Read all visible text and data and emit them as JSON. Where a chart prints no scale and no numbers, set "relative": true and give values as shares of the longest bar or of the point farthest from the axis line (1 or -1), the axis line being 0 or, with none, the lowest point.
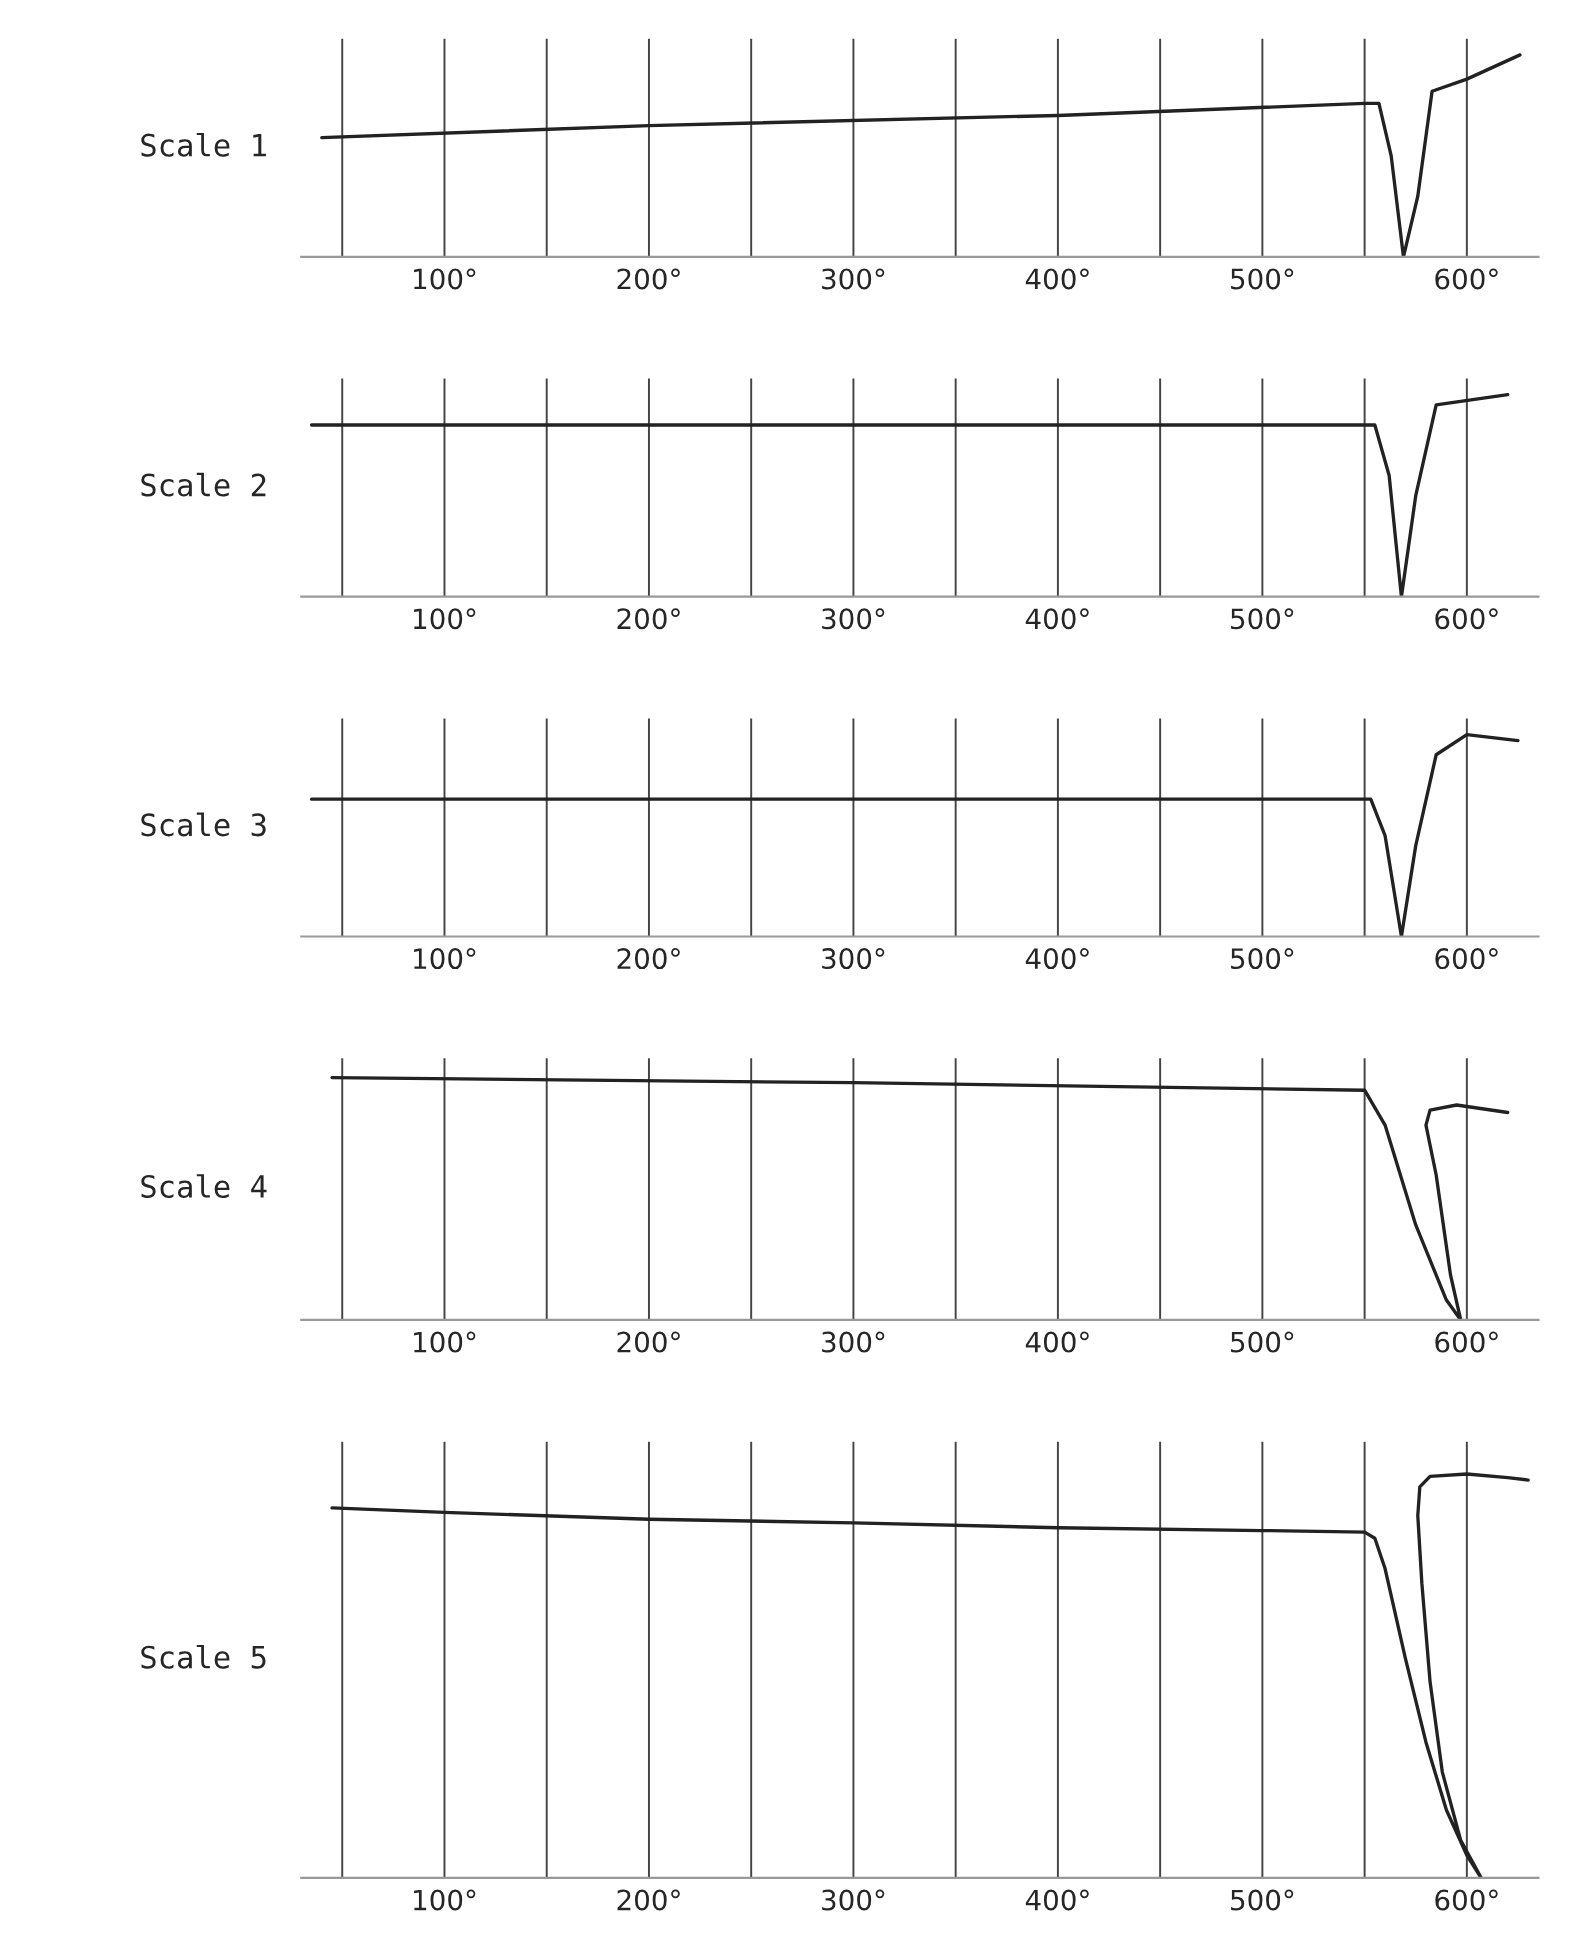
{
  "chart_data": [
    {
      "type": "line",
      "ylabel": "Scale 1",
      "relative": true,
      "grid": "x",
      "xlim": [
        30,
        635
      ],
      "xticks": [
        {
          "value": 50,
          "label": null
        },
        {
          "value": 100,
          "label": "100°"
        },
        {
          "value": 150,
          "label": null
        },
        {
          "value": 200,
          "label": "200°"
        },
        {
          "value": 250,
          "label": null
        },
        {
          "value": 300,
          "label": "300°"
        },
        {
          "value": 350,
          "label": null
        },
        {
          "value": 400,
          "label": "400°"
        },
        {
          "value": 450,
          "label": null
        },
        {
          "value": 500,
          "label": "500°"
        },
        {
          "value": 550,
          "label": null
        },
        {
          "value": 600,
          "label": "600°"
        }
      ],
      "series": [
        {
          "color": "#222222",
          "x": [
            40,
            200,
            400,
            550,
            557,
            563,
            569,
            576,
            583,
            600,
            626
          ],
          "values": [
            0.59,
            0.65,
            0.7,
            0.76,
            0.76,
            0.5,
            0,
            0.3,
            0.82,
            0.88,
            1
          ]
        }
      ]
    },
    {
      "type": "line",
      "ylabel": "Scale 2",
      "relative": true,
      "grid": "x",
      "xlim": [
        30,
        635
      ],
      "xticks": [
        {
          "value": 50,
          "label": null
        },
        {
          "value": 100,
          "label": "100°"
        },
        {
          "value": 150,
          "label": null
        },
        {
          "value": 200,
          "label": "200°"
        },
        {
          "value": 250,
          "label": null
        },
        {
          "value": 300,
          "label": "300°"
        },
        {
          "value": 350,
          "label": null
        },
        {
          "value": 400,
          "label": "400°"
        },
        {
          "value": 450,
          "label": null
        },
        {
          "value": 500,
          "label": "500°"
        },
        {
          "value": 550,
          "label": null
        },
        {
          "value": 600,
          "label": "600°"
        }
      ],
      "series": [
        {
          "color": "#222222",
          "x": [
            35,
            300,
            555,
            562,
            568,
            575,
            585,
            620
          ],
          "values": [
            0.85,
            0.85,
            0.85,
            0.6,
            0,
            0.5,
            0.95,
            1
          ]
        }
      ]
    },
    {
      "type": "line",
      "ylabel": "Scale 3",
      "relative": true,
      "grid": "x",
      "xlim": [
        30,
        635
      ],
      "xticks": [
        {
          "value": 50,
          "label": null
        },
        {
          "value": 100,
          "label": "100°"
        },
        {
          "value": 150,
          "label": null
        },
        {
          "value": 200,
          "label": "200°"
        },
        {
          "value": 250,
          "label": null
        },
        {
          "value": 300,
          "label": "300°"
        },
        {
          "value": 350,
          "label": null
        },
        {
          "value": 400,
          "label": "400°"
        },
        {
          "value": 450,
          "label": null
        },
        {
          "value": 500,
          "label": "500°"
        },
        {
          "value": 550,
          "label": null
        },
        {
          "value": 600,
          "label": "600°"
        }
      ],
      "series": [
        {
          "color": "#222222",
          "x": [
            35,
            300,
            553,
            560,
            568,
            575,
            585,
            600,
            625
          ],
          "values": [
            0.68,
            0.68,
            0.68,
            0.5,
            0,
            0.45,
            0.9,
            1,
            0.97
          ]
        }
      ]
    },
    {
      "type": "line",
      "ylabel": "Scale 4",
      "relative": true,
      "grid": "x",
      "xlim": [
        30,
        635
      ],
      "xticks": [
        {
          "value": 50,
          "label": null
        },
        {
          "value": 100,
          "label": "100°"
        },
        {
          "value": 150,
          "label": null
        },
        {
          "value": 200,
          "label": "200°"
        },
        {
          "value": 250,
          "label": null
        },
        {
          "value": 300,
          "label": "300°"
        },
        {
          "value": 350,
          "label": null
        },
        {
          "value": 400,
          "label": "400°"
        },
        {
          "value": 450,
          "label": null
        },
        {
          "value": 500,
          "label": "500°"
        },
        {
          "value": 550,
          "label": null
        },
        {
          "value": 600,
          "label": "600°"
        }
      ],
      "series": [
        {
          "color": "#222222",
          "x": [
            45,
            300,
            550,
            560,
            575,
            590,
            597,
            592,
            585,
            580,
            582,
            595,
            620
          ],
          "values": [
            1,
            0.979,
            0.948,
            0.804,
            0.392,
            0.082,
            0,
            0.186,
            0.598,
            0.804,
            0.866,
            0.887,
            0.856
          ]
        }
      ]
    },
    {
      "type": "line",
      "ylabel": "Scale 5",
      "relative": true,
      "grid": "x",
      "xlim": [
        30,
        635
      ],
      "xticks": [
        {
          "value": 50,
          "label": null
        },
        {
          "value": 100,
          "label": "100°"
        },
        {
          "value": 150,
          "label": null
        },
        {
          "value": 200,
          "label": "200°"
        },
        {
          "value": 250,
          "label": null
        },
        {
          "value": 300,
          "label": "300°"
        },
        {
          "value": 350,
          "label": null
        },
        {
          "value": 400,
          "label": "400°"
        },
        {
          "value": 450,
          "label": null
        },
        {
          "value": 500,
          "label": "500°"
        },
        {
          "value": 550,
          "label": null
        },
        {
          "value": 600,
          "label": "600°"
        }
      ],
      "series": [
        {
          "color": "#222222",
          "x": [
            45,
            100,
            200,
            300,
            400,
            500,
            550,
            555,
            560,
            570,
            580,
            590,
            600,
            607,
            597,
            588,
            582,
            578,
            576,
            577,
            582,
            600,
            620,
            630
          ],
          "values": [
            0.916,
            0.905,
            0.888,
            0.879,
            0.867,
            0.86,
            0.856,
            0.841,
            0.766,
            0.542,
            0.336,
            0.168,
            0.056,
            0,
            0.093,
            0.262,
            0.486,
            0.729,
            0.897,
            0.968,
            0.994,
            1,
            0.991,
            0.985
          ]
        }
      ]
    }
  ]
}
